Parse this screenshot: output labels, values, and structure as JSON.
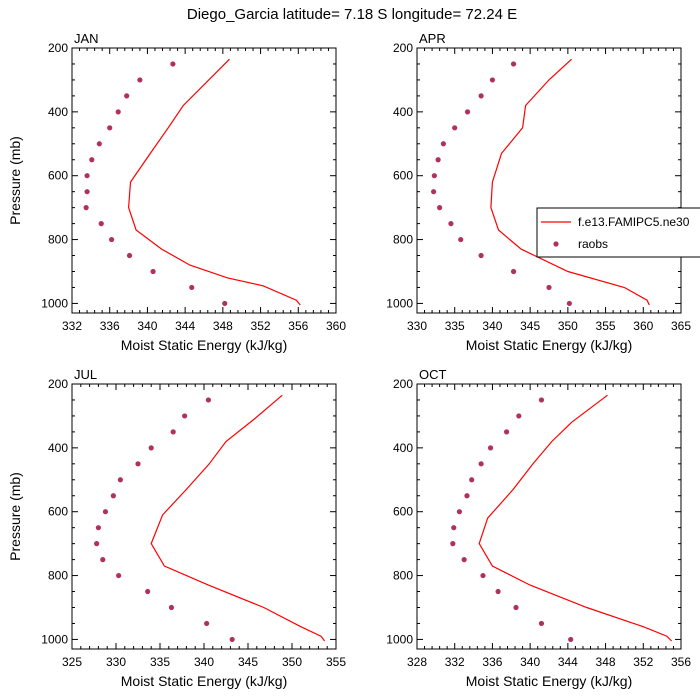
{
  "chart_data": {
    "type": "line",
    "title": "Diego_Garcia  latitude= 7.18 S longitude= 72.24 E",
    "xlabel": "Moist Static Energy (kJ/kg)",
    "ylabel": "Pressure (mb)",
    "legend": {
      "placement": "right-of-apr-panel",
      "entries": [
        {
          "name": "f.e13.FAMIPC5.ne30",
          "color": "#ff0000",
          "style": "line"
        },
        {
          "name": "raobs",
          "color": "#b03060",
          "style": "marker"
        }
      ]
    },
    "panels": [
      {
        "label": "JAN",
        "xlim": [
          332,
          360
        ],
        "xticks": [
          332,
          336,
          340,
          344,
          348,
          352,
          356,
          360
        ],
        "ylim": [
          200,
          1030
        ],
        "yticks": [
          200,
          400,
          600,
          800,
          1000
        ],
        "model": {
          "p": [
            235,
            380,
            450,
            530,
            620,
            700,
            770,
            830,
            880,
            920,
            945,
            990,
            1005
          ],
          "mse": [
            348.7,
            343.8,
            342.2,
            340.3,
            338.2,
            338.0,
            338.8,
            341.5,
            344.5,
            348.5,
            352.3,
            355.8,
            356.2
          ]
        },
        "raobs": {
          "p": [
            250,
            300,
            350,
            400,
            450,
            500,
            550,
            600,
            650,
            700,
            750,
            800,
            850,
            900,
            950,
            1000
          ],
          "mse": [
            342.7,
            339.2,
            337.8,
            336.9,
            336.0,
            334.9,
            334.1,
            333.6,
            333.6,
            333.5,
            335.1,
            336.2,
            338.1,
            340.6,
            344.7,
            348.2
          ]
        }
      },
      {
        "label": "APR",
        "xlim": [
          330,
          365
        ],
        "xticks": [
          330,
          335,
          340,
          345,
          350,
          355,
          360,
          365
        ],
        "ylim": [
          200,
          1030
        ],
        "yticks": [
          200,
          400,
          600,
          800,
          1000
        ],
        "model": {
          "p": [
            235,
            300,
            380,
            450,
            530,
            620,
            700,
            770,
            830,
            900,
            950,
            990,
            1005
          ],
          "mse": [
            350.5,
            347.5,
            344.4,
            344.0,
            341.2,
            340.0,
            339.8,
            340.8,
            343.8,
            350.0,
            357.5,
            360.5,
            360.8
          ]
        },
        "raobs": {
          "p": [
            250,
            300,
            350,
            400,
            450,
            500,
            550,
            600,
            650,
            700,
            750,
            800,
            850,
            900,
            950,
            1000
          ],
          "mse": [
            342.8,
            340.0,
            338.5,
            336.7,
            335.0,
            333.5,
            332.8,
            332.3,
            332.2,
            333.0,
            334.5,
            335.8,
            338.5,
            342.8,
            347.5,
            350.2
          ]
        }
      },
      {
        "label": "JUL",
        "xlim": [
          325,
          355
        ],
        "xticks": [
          325,
          330,
          335,
          340,
          345,
          350,
          355
        ],
        "ylim": [
          200,
          1030
        ],
        "yticks": [
          200,
          400,
          600,
          800,
          1000
        ],
        "model": {
          "p": [
            235,
            310,
            380,
            450,
            530,
            610,
            700,
            770,
            830,
            900,
            960,
            990,
            1005
          ],
          "mse": [
            348.9,
            345.7,
            342.5,
            340.6,
            338.0,
            335.3,
            334.0,
            335.5,
            340.5,
            346.8,
            351.0,
            353.3,
            353.7
          ]
        },
        "raobs": {
          "p": [
            250,
            300,
            350,
            400,
            450,
            500,
            550,
            600,
            650,
            700,
            750,
            800,
            850,
            900,
            950,
            1000
          ],
          "mse": [
            340.5,
            337.8,
            336.5,
            334.0,
            332.5,
            330.5,
            329.7,
            328.8,
            328.0,
            327.8,
            328.5,
            330.3,
            333.6,
            336.3,
            340.3,
            343.2
          ]
        }
      },
      {
        "label": "OCT",
        "xlim": [
          328,
          356
        ],
        "xticks": [
          328,
          332,
          336,
          340,
          344,
          348,
          352,
          356
        ],
        "ylim": [
          200,
          1030
        ],
        "yticks": [
          200,
          400,
          600,
          800,
          1000
        ],
        "model": {
          "p": [
            235,
            320,
            380,
            450,
            530,
            620,
            700,
            770,
            830,
            900,
            960,
            990,
            1005
          ],
          "mse": [
            348.2,
            344.4,
            342.3,
            340.3,
            338.2,
            335.5,
            334.6,
            336.0,
            340.0,
            346.0,
            352.0,
            354.5,
            355.0
          ]
        },
        "raobs": {
          "p": [
            250,
            300,
            350,
            400,
            450,
            500,
            550,
            600,
            650,
            700,
            750,
            800,
            850,
            900,
            950,
            1000
          ],
          "mse": [
            341.2,
            338.8,
            337.5,
            335.8,
            334.8,
            333.8,
            333.3,
            332.5,
            331.9,
            331.8,
            333.0,
            335.0,
            336.6,
            338.5,
            341.2,
            344.3
          ]
        }
      }
    ]
  }
}
